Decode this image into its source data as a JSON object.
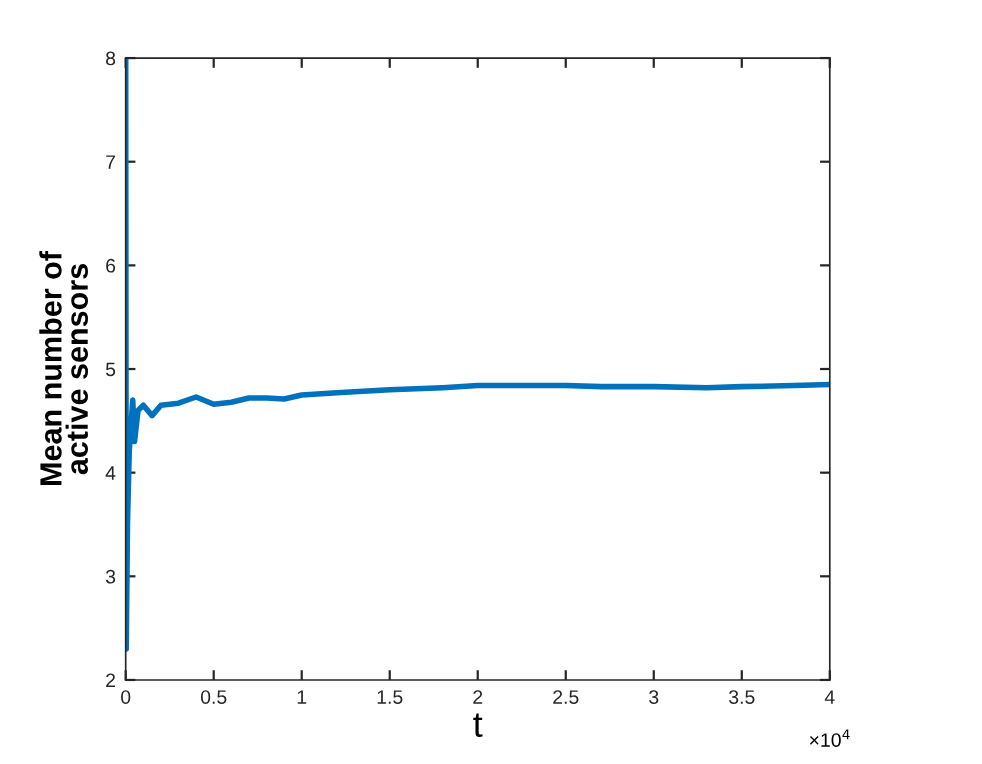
{
  "chart_data": {
    "type": "line",
    "xlabel": "t",
    "ylabel": "Mean number of\nactive sensors",
    "annotations": [
      "×10$^{4}$"
    ],
    "series": [
      {
        "color": "#0072bd",
        "x": [
          0,
          0.003,
          0.01,
          0.02,
          0.04,
          0.05,
          0.07,
          0.1,
          0.15,
          0.2,
          0.3,
          0.4,
          0.5,
          0.6,
          0.7,
          0.8,
          0.9,
          1,
          1.2,
          1.5,
          1.8,
          2,
          2.2,
          2.5,
          2.7,
          3,
          3.3,
          3.5,
          3.8,
          4
        ],
        "values": [
          8,
          2.3,
          3.5,
          4.2,
          4.7,
          4.3,
          4.6,
          4.65,
          4.55,
          4.65,
          4.67,
          4.73,
          4.66,
          4.68,
          4.72,
          4.72,
          4.71,
          4.75,
          4.77,
          4.8,
          4.82,
          4.84,
          4.84,
          4.84,
          4.83,
          4.83,
          4.82,
          4.83,
          4.84,
          4.85
        ]
      }
    ],
    "xlim": [
      0,
      4
    ],
    "xticks": [
      0,
      0.5,
      1,
      1.5,
      2,
      2.5,
      3,
      3.5,
      4
    ],
    "ylim": [
      2,
      8
    ],
    "yticks": [
      2,
      3,
      4,
      5,
      6,
      7,
      8
    ],
    "grid": false,
    "legend": false,
    "line_style": "solid",
    "marker": "none"
  }
}
